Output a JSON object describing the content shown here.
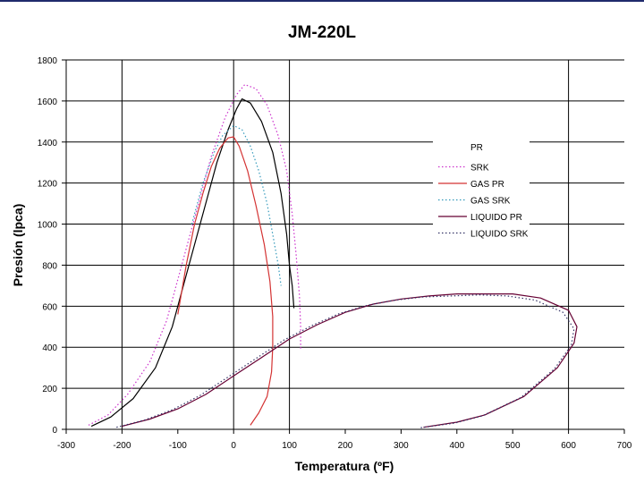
{
  "chart_data": {
    "type": "line",
    "title": "JM-220L",
    "xlabel": "Temperatura (ºF)",
    "ylabel": "Presión (lpca)",
    "xlim": [
      -300,
      700
    ],
    "ylim": [
      0,
      1800
    ],
    "xticks": [
      -300,
      -200,
      -100,
      0,
      100,
      200,
      300,
      400,
      500,
      600,
      700
    ],
    "yticks": [
      0,
      200,
      400,
      600,
      800,
      1000,
      1200,
      1400,
      1600,
      1800
    ],
    "grid": "horizontal and vertical major lines",
    "legend_position": "right",
    "series": [
      {
        "name": "PR",
        "style": "solid",
        "color": "#000000",
        "x": [
          -255,
          -220,
          -180,
          -140,
          -110,
          -90,
          -70,
          -50,
          -30,
          -10,
          5,
          15,
          30,
          50,
          70,
          85,
          95,
          100,
          105,
          108
        ],
        "y": [
          15,
          60,
          150,
          300,
          500,
          700,
          900,
          1100,
          1300,
          1460,
          1560,
          1610,
          1590,
          1500,
          1350,
          1150,
          950,
          800,
          700,
          590
        ]
      },
      {
        "name": "SRK",
        "style": "dotted",
        "color": "#cc33cc",
        "x": [
          -260,
          -225,
          -190,
          -150,
          -120,
          -100,
          -80,
          -60,
          -40,
          -15,
          5,
          20,
          40,
          60,
          80,
          95,
          105,
          112,
          118,
          120,
          120
        ],
        "y": [
          20,
          70,
          170,
          330,
          530,
          730,
          930,
          1130,
          1330,
          1520,
          1630,
          1680,
          1660,
          1580,
          1430,
          1260,
          1050,
          850,
          650,
          500,
          390
        ]
      },
      {
        "name": "GAS PR",
        "style": "solid",
        "color": "#d43333",
        "x": [
          -100,
          -85,
          -70,
          -55,
          -40,
          -25,
          -10,
          0,
          10,
          25,
          40,
          55,
          65,
          70,
          70,
          68,
          60,
          45,
          30
        ],
        "y": [
          560,
          800,
          1000,
          1150,
          1280,
          1370,
          1420,
          1425,
          1380,
          1260,
          1090,
          900,
          720,
          550,
          400,
          280,
          160,
          80,
          20
        ]
      },
      {
        "name": "GAS SRK",
        "style": "dotted",
        "color": "#3399bb",
        "x": [
          -75,
          -55,
          -35,
          -20,
          0,
          15,
          30,
          45,
          60,
          70,
          80,
          85
        ],
        "y": [
          1000,
          1200,
          1350,
          1430,
          1480,
          1460,
          1380,
          1260,
          1100,
          950,
          800,
          700
        ]
      },
      {
        "name": "LIQUIDO PR",
        "style": "solid",
        "color": "#660033",
        "x": [
          -200,
          -150,
          -100,
          -50,
          0,
          50,
          100,
          150,
          200,
          250,
          300,
          350,
          400,
          450,
          500,
          550,
          600,
          615,
          610,
          580,
          520,
          450,
          400,
          340
        ],
        "y": [
          15,
          50,
          100,
          170,
          260,
          350,
          440,
          510,
          570,
          610,
          635,
          650,
          660,
          660,
          660,
          640,
          580,
          500,
          420,
          300,
          160,
          70,
          35,
          10
        ]
      },
      {
        "name": "LIQUIDO SRK",
        "style": "dotted",
        "color": "#333366",
        "x": [
          -210,
          -160,
          -110,
          -60,
          -10,
          40,
          90,
          140,
          190,
          240,
          290,
          340,
          390,
          440,
          490,
          540,
          590,
          610,
          605,
          575,
          515,
          445,
          395,
          335
        ],
        "y": [
          10,
          45,
          95,
          165,
          255,
          345,
          435,
          505,
          565,
          605,
          630,
          645,
          650,
          655,
          650,
          630,
          570,
          490,
          410,
          295,
          155,
          65,
          30,
          8
        ]
      }
    ]
  }
}
